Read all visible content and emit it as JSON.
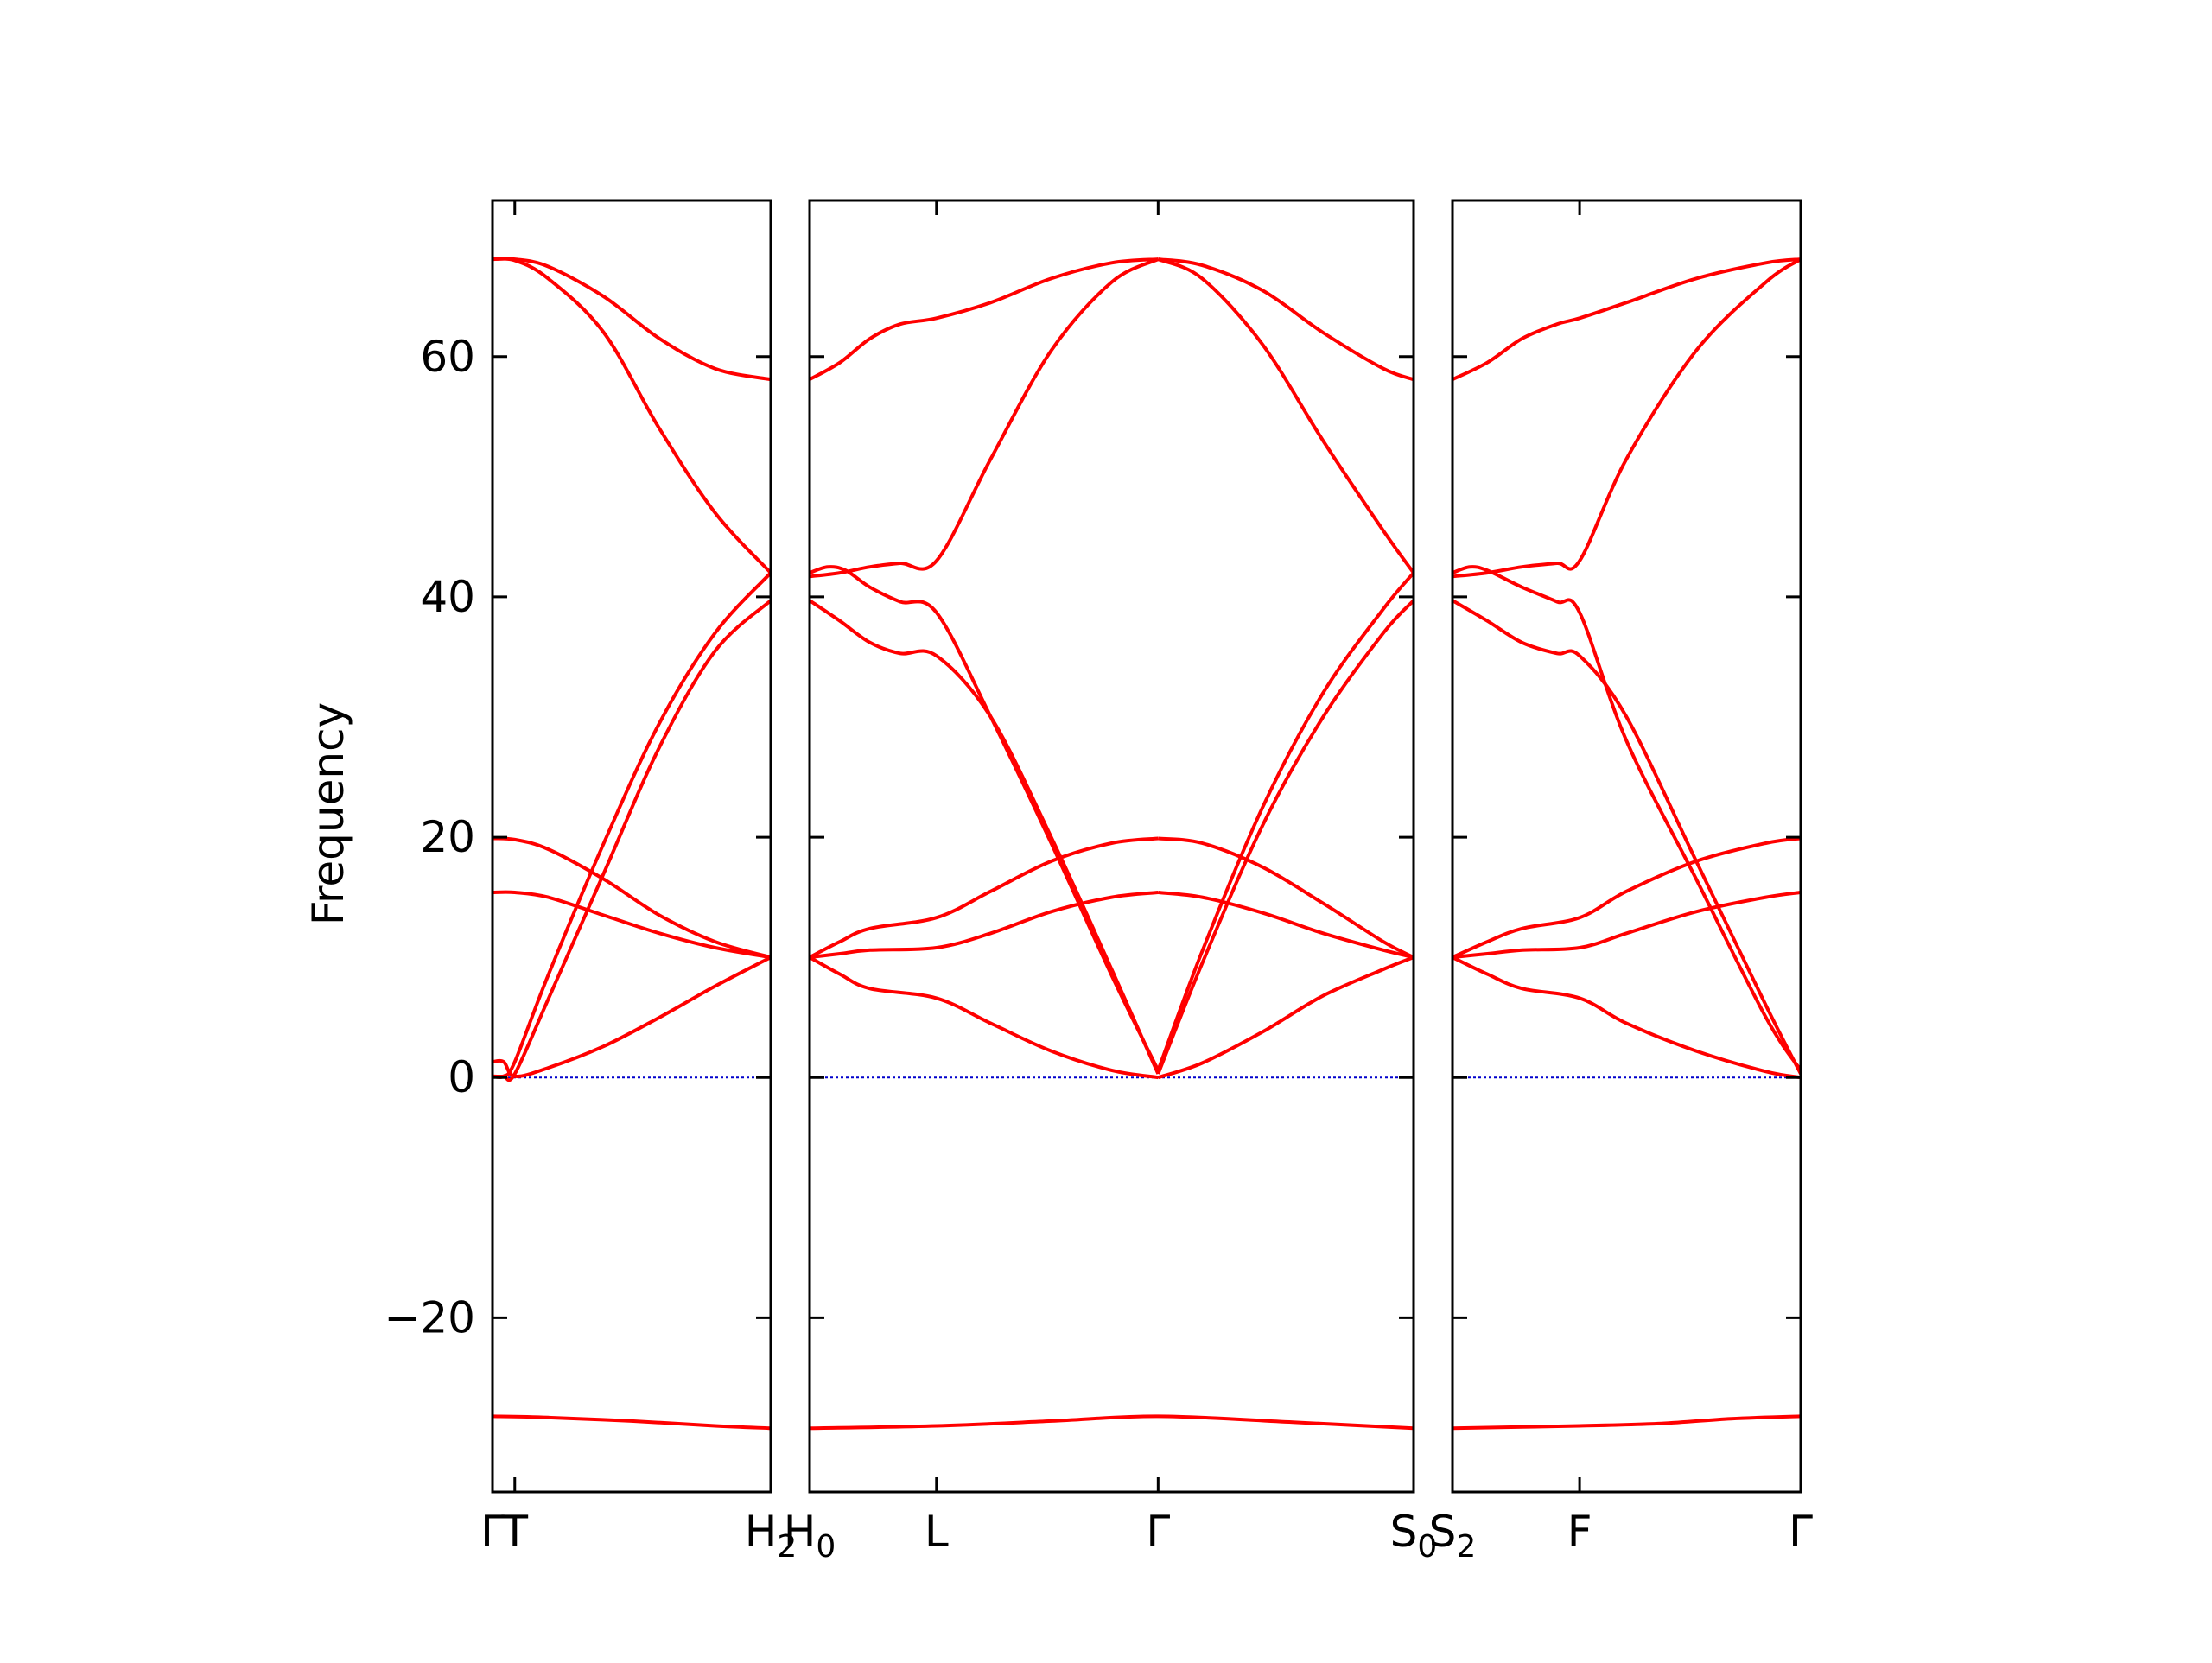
{
  "chart_data": {
    "type": "line",
    "title": "",
    "xlabel": "",
    "ylabel": "Frequency",
    "ylim": [
      -34.5,
      73
    ],
    "yticks": [
      -20,
      0,
      20,
      40,
      60
    ],
    "ytick_labels": [
      "−20",
      "0",
      "20",
      "40",
      "60"
    ],
    "grid": false,
    "legend": "none",
    "band_color": "#ff0000",
    "zero_line_color": "#0000cc",
    "panels": [
      {
        "xlim": [
          0.0,
          1.0
        ],
        "ticks": [
          {
            "x": 0.0,
            "label": "Γ"
          },
          {
            "x": 0.08,
            "label": "T"
          },
          {
            "x": 1.0,
            "label": "H",
            "sub": "2"
          }
        ],
        "bands": [
          {
            "x": [
              0,
              0.04,
              0.08,
              0.2,
              0.4,
              0.6,
              0.8,
              1.0
            ],
            "y": [
              1.3,
              1.3,
              0.1,
              0.8,
              2.6,
              5.0,
              7.6,
              10.0
            ]
          },
          {
            "x": [
              0,
              0.04,
              0.08,
              0.2,
              0.4,
              0.6,
              0.8,
              1.0
            ],
            "y": [
              0.1,
              0.1,
              0.3,
              6.5,
              17.0,
              27.5,
              35.5,
              39.7
            ]
          },
          {
            "x": [
              0,
              0.04,
              0.08,
              0.2,
              0.4,
              0.6,
              0.8,
              1.0
            ],
            "y": [
              0.1,
              0.1,
              1.3,
              8.5,
              19.5,
              29.5,
              37.0,
              42.0
            ]
          },
          {
            "x": [
              0,
              0.08,
              0.2,
              0.4,
              0.6,
              0.8,
              1.0
            ],
            "y": [
              15.4,
              15.4,
              15.0,
              13.5,
              12.0,
              10.8,
              10.0
            ]
          },
          {
            "x": [
              0,
              0.08,
              0.2,
              0.4,
              0.6,
              0.8,
              1.0
            ],
            "y": [
              19.9,
              19.8,
              19.0,
              16.5,
              13.5,
              11.3,
              10.0
            ]
          },
          {
            "x": [
              0,
              0.08,
              0.2,
              0.4,
              0.6,
              0.8,
              1.0
            ],
            "y": [
              68.1,
              68.0,
              66.5,
              62.0,
              54.0,
              47.0,
              42.0
            ]
          },
          {
            "x": [
              0,
              0.08,
              0.2,
              0.4,
              0.6,
              0.8,
              1.0
            ],
            "y": [
              68.1,
              68.1,
              67.5,
              65.0,
              61.5,
              59.0,
              58.1
            ]
          },
          {
            "x": [
              0,
              0.2,
              0.5,
              0.8,
              1.0
            ],
            "y": [
              -28.2,
              -28.3,
              -28.6,
              -29.0,
              -29.2
            ]
          }
        ]
      },
      {
        "xlim": [
          0.0,
          1.0
        ],
        "ticks": [
          {
            "x": 0.0,
            "label": "H",
            "sub": "0"
          },
          {
            "x": 0.21,
            "label": "L"
          },
          {
            "x": 0.577,
            "label": "Γ"
          },
          {
            "x": 1.0,
            "label": "S",
            "sub": "0"
          }
        ],
        "bands": [
          {
            "x": [
              0,
              0.05,
              0.1,
              0.21,
              0.3,
              0.4,
              0.5,
              0.577
            ],
            "y": [
              10.0,
              8.6,
              7.4,
              6.6,
              4.5,
              2.2,
              0.6,
              0.0
            ]
          },
          {
            "x": [
              0,
              0.05,
              0.1,
              0.21,
              0.3,
              0.4,
              0.5,
              0.577
            ],
            "y": [
              10.0,
              10.3,
              10.6,
              10.8,
              12.0,
              13.8,
              15.0,
              15.4
            ]
          },
          {
            "x": [
              0,
              0.05,
              0.1,
              0.21,
              0.3,
              0.4,
              0.5,
              0.577
            ],
            "y": [
              10.0,
              11.3,
              12.4,
              13.3,
              15.5,
              18.0,
              19.5,
              19.9
            ]
          },
          {
            "x": [
              0,
              0.05,
              0.1,
              0.15,
              0.21,
              0.3,
              0.4,
              0.5,
              0.577
            ],
            "y": [
              39.7,
              38.0,
              36.2,
              35.3,
              35.1,
              30.0,
              20.0,
              9.0,
              0.3
            ]
          },
          {
            "x": [
              0,
              0.03,
              0.06,
              0.1,
              0.15,
              0.21,
              0.3,
              0.4,
              0.5,
              0.577
            ],
            "y": [
              42.0,
              42.5,
              42.2,
              40.8,
              39.6,
              38.7,
              30.0,
              19.5,
              8.5,
              0.6
            ]
          },
          {
            "x": [
              0,
              0.05,
              0.1,
              0.15,
              0.21,
              0.3,
              0.4,
              0.5,
              0.577
            ],
            "y": [
              41.7,
              42.0,
              42.5,
              42.8,
              43.0,
              51.5,
              60.5,
              66.2,
              68.1
            ]
          },
          {
            "x": [
              0,
              0.05,
              0.1,
              0.15,
              0.21,
              0.3,
              0.4,
              0.5,
              0.577
            ],
            "y": [
              58.1,
              59.5,
              61.5,
              62.7,
              63.2,
              64.5,
              66.5,
              67.8,
              68.1
            ]
          },
          {
            "x": [
              0.577,
              0.65,
              0.75,
              0.85,
              0.95,
              1.0
            ],
            "y": [
              0.0,
              1.2,
              3.8,
              6.8,
              9.0,
              10.0
            ]
          },
          {
            "x": [
              0.577,
              0.65,
              0.75,
              0.85,
              0.95,
              1.0
            ],
            "y": [
              15.4,
              15.0,
              13.7,
              12.0,
              10.6,
              10.0
            ]
          },
          {
            "x": [
              0.577,
              0.65,
              0.75,
              0.85,
              0.95,
              1.0
            ],
            "y": [
              19.9,
              19.5,
              17.5,
              14.5,
              11.3,
              10.0
            ]
          },
          {
            "x": [
              0.577,
              0.65,
              0.75,
              0.85,
              0.95,
              1.0
            ],
            "y": [
              0.3,
              9.5,
              21.0,
              30.0,
              37.0,
              39.7
            ]
          },
          {
            "x": [
              0.577,
              0.65,
              0.75,
              0.85,
              0.95,
              1.0
            ],
            "y": [
              0.6,
              10.5,
              22.5,
              32.0,
              39.0,
              42.0
            ]
          },
          {
            "x": [
              0.577,
              0.65,
              0.75,
              0.85,
              0.95,
              1.0
            ],
            "y": [
              68.1,
              66.5,
              61.0,
              53.0,
              45.5,
              42.0
            ]
          },
          {
            "x": [
              0.577,
              0.65,
              0.75,
              0.85,
              0.95,
              1.0
            ],
            "y": [
              68.1,
              67.6,
              65.5,
              62.0,
              59.0,
              58.1
            ]
          },
          {
            "x": [
              0,
              0.21,
              0.4,
              0.577,
              0.8,
              1.0
            ],
            "y": [
              -29.2,
              -29.0,
              -28.6,
              -28.2,
              -28.7,
              -29.2
            ]
          }
        ]
      },
      {
        "xlim": [
          0.0,
          1.0
        ],
        "ticks": [
          {
            "x": 0.0,
            "label": "S",
            "sub": "2"
          },
          {
            "x": 0.365,
            "label": "F"
          },
          {
            "x": 1.0,
            "label": "Γ"
          }
        ],
        "bands": [
          {
            "x": [
              0,
              0.1,
              0.2,
              0.365,
              0.5,
              0.7,
              0.9,
              1.0
            ],
            "y": [
              10.0,
              8.6,
              7.4,
              6.6,
              4.5,
              2.2,
              0.5,
              0.0
            ]
          },
          {
            "x": [
              0,
              0.1,
              0.2,
              0.365,
              0.5,
              0.7,
              0.9,
              1.0
            ],
            "y": [
              10.0,
              10.3,
              10.6,
              10.8,
              12.0,
              13.8,
              15.0,
              15.4
            ]
          },
          {
            "x": [
              0,
              0.1,
              0.2,
              0.365,
              0.5,
              0.7,
              0.9,
              1.0
            ],
            "y": [
              10.0,
              11.3,
              12.4,
              13.3,
              15.5,
              18.0,
              19.5,
              19.9
            ]
          },
          {
            "x": [
              0,
              0.1,
              0.2,
              0.3,
              0.365,
              0.5,
              0.7,
              0.9,
              1.0
            ],
            "y": [
              39.7,
              38.0,
              36.2,
              35.3,
              35.1,
              30.0,
              18.0,
              6.0,
              0.3
            ]
          },
          {
            "x": [
              0,
              0.05,
              0.1,
              0.2,
              0.3,
              0.365,
              0.5,
              0.7,
              0.9,
              1.0
            ],
            "y": [
              42.0,
              42.5,
              42.2,
              40.8,
              39.6,
              38.7,
              28.0,
              16.5,
              5.0,
              0.6
            ]
          },
          {
            "x": [
              0,
              0.1,
              0.2,
              0.3,
              0.365,
              0.5,
              0.7,
              0.9,
              1.0
            ],
            "y": [
              41.7,
              42.0,
              42.5,
              42.8,
              43.0,
              51.5,
              60.5,
              66.2,
              68.1
            ]
          },
          {
            "x": [
              0,
              0.1,
              0.2,
              0.3,
              0.365,
              0.5,
              0.7,
              0.9,
              1.0
            ],
            "y": [
              58.1,
              59.5,
              61.5,
              62.7,
              63.2,
              64.5,
              66.5,
              67.8,
              68.1
            ]
          },
          {
            "x": [
              0,
              0.365,
              0.6,
              0.8,
              1.0
            ],
            "y": [
              -29.2,
              -29.0,
              -28.8,
              -28.4,
              -28.2
            ]
          }
        ]
      }
    ]
  }
}
